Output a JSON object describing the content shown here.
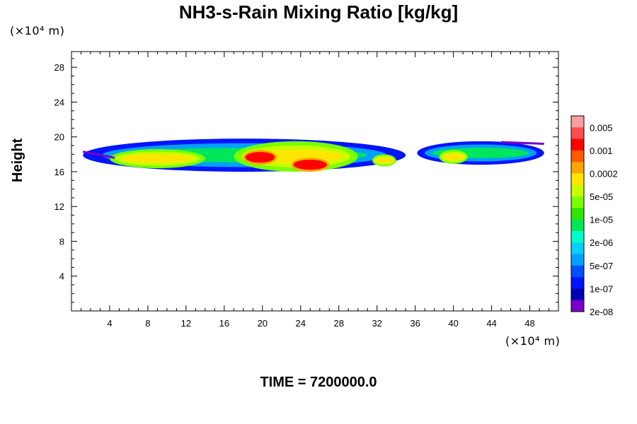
{
  "chart_data": {
    "type": "heatmap",
    "title": "NH3-s-Rain Mixing Ratio [kg/kg]",
    "x_unit": "(×10⁴ m)",
    "y_unit": "(×10⁴ m)",
    "ylabel": "Height",
    "xlabel": "",
    "x_ticks": [
      4,
      8,
      12,
      16,
      20,
      24,
      28,
      32,
      36,
      40,
      44,
      48
    ],
    "y_ticks": [
      4,
      8,
      12,
      16,
      20,
      24,
      28
    ],
    "xlim": [
      0,
      51
    ],
    "ylim": [
      0,
      29.8
    ],
    "colorbar": {
      "labels": [
        "0.005",
        "0.001",
        "0.0002",
        "5e-05",
        "1e-05",
        "2e-06",
        "5e-07",
        "1e-07",
        "2e-08"
      ],
      "colors": [
        "#ff9e9e",
        "#ff4d4d",
        "#ff0000",
        "#ff5a00",
        "#ffa500",
        "#ffe600",
        "#c8ff00",
        "#78ff00",
        "#2ee600",
        "#00e65a",
        "#00ffc8",
        "#00d2ff",
        "#00a0ff",
        "#0050ff",
        "#0014ff",
        "#0000b4",
        "#7800c8"
      ]
    },
    "field_regions": [
      {
        "level": "low",
        "x": [
          1.2,
          35.0
        ],
        "y": [
          16.0,
          19.8
        ]
      },
      {
        "level": "low",
        "x": [
          36.2,
          49.5
        ],
        "y": [
          16.8,
          19.5
        ]
      },
      {
        "level": "mid",
        "x": [
          4.0,
          14.0
        ],
        "y": [
          16.4,
          18.6
        ]
      },
      {
        "level": "mid",
        "x": [
          17.0,
          30.0
        ],
        "y": [
          16.0,
          19.5
        ]
      },
      {
        "level": "mid",
        "x": [
          31.5,
          34.0
        ],
        "y": [
          16.6,
          18.0
        ]
      },
      {
        "level": "mid",
        "x": [
          38.5,
          41.5
        ],
        "y": [
          16.9,
          18.5
        ]
      },
      {
        "level": "high",
        "x": [
          18.0,
          21.5
        ],
        "y": [
          16.8,
          18.5
        ]
      },
      {
        "level": "high",
        "x": [
          23.0,
          27.0
        ],
        "y": [
          16.0,
          17.6
        ]
      }
    ]
  },
  "footer": {
    "time_label": "TIME = 7200000.0"
  }
}
